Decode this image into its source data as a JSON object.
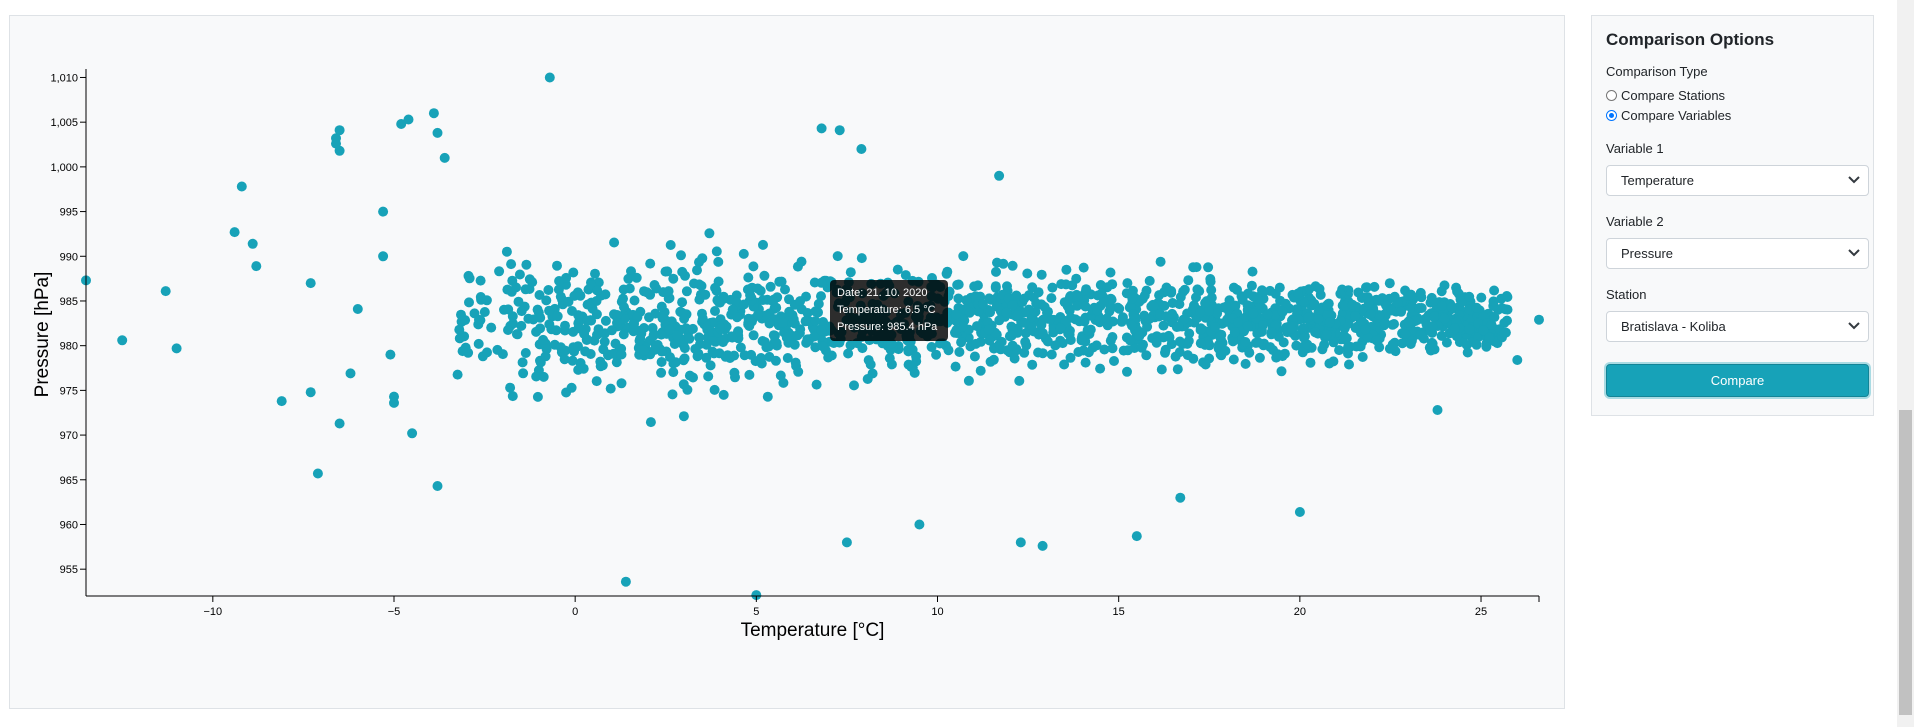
{
  "chart_data": {
    "type": "scatter",
    "xlabel": "Temperature [°C]",
    "ylabel": "Pressure [hPa]",
    "xlim": [
      -13.5,
      26.6
    ],
    "ylim": [
      952,
      1010.5
    ],
    "x_ticks": [
      -10,
      -5,
      0,
      5,
      10,
      15,
      20,
      25
    ],
    "x_tick_labels": [
      "−10",
      "−5",
      "0",
      "5",
      "10",
      "15",
      "20",
      "25"
    ],
    "y_ticks": [
      955,
      960,
      965,
      970,
      975,
      980,
      985,
      990,
      995,
      1000,
      1005,
      1010
    ],
    "y_tick_labels": [
      "955",
      "960",
      "965",
      "970",
      "975",
      "980",
      "985",
      "990",
      "995",
      "1,000",
      "1,005",
      "1,010"
    ],
    "grid": false,
    "point_color": "#17a2b8",
    "points": [
      [
        -13.5,
        987.3
      ],
      [
        -12.5,
        980.6
      ],
      [
        -11.3,
        986.1
      ],
      [
        -11.0,
        979.7
      ],
      [
        -9.4,
        992.7
      ],
      [
        -9.2,
        997.8
      ],
      [
        -8.9,
        991.4
      ],
      [
        -8.8,
        988.9
      ],
      [
        -8.1,
        973.8
      ],
      [
        -7.3,
        987.0
      ],
      [
        -7.3,
        974.8
      ],
      [
        -7.1,
        965.7
      ],
      [
        -6.6,
        1003.2
      ],
      [
        -6.6,
        1002.6
      ],
      [
        -6.5,
        1004.1
      ],
      [
        -6.5,
        1001.8
      ],
      [
        -6.5,
        971.3
      ],
      [
        -6.2,
        976.9
      ],
      [
        -6.0,
        984.1
      ],
      [
        -5.3,
        995.0
      ],
      [
        -5.3,
        990.0
      ],
      [
        -5.1,
        979.0
      ],
      [
        -5.0,
        974.3
      ],
      [
        -5.0,
        973.6
      ],
      [
        -4.8,
        1004.8
      ],
      [
        -4.6,
        1005.3
      ],
      [
        -4.5,
        970.2
      ],
      [
        -3.9,
        1006.0
      ],
      [
        -3.8,
        964.3
      ],
      [
        -3.8,
        1003.8
      ],
      [
        -3.6,
        1001.0
      ],
      [
        -0.7,
        1010.0
      ],
      [
        1.4,
        953.6
      ],
      [
        5.0,
        952.1
      ],
      [
        6.8,
        1004.3
      ],
      [
        7.3,
        1004.1
      ],
      [
        7.5,
        958.0
      ],
      [
        7.9,
        1002.0
      ],
      [
        9.5,
        960.0
      ],
      [
        11.7,
        999.0
      ],
      [
        12.3,
        958.0
      ],
      [
        12.9,
        957.6
      ],
      [
        15.5,
        958.7
      ],
      [
        16.7,
        963.0
      ],
      [
        20.0,
        961.4
      ],
      [
        23.8,
        972.8
      ],
      [
        26.0,
        978.4
      ],
      [
        26.6,
        982.9
      ]
    ],
    "tooltip": {
      "date": "Date: 21. 10. 2020",
      "temperature": "Temperature: 6.5 °C",
      "pressure": "Pressure: 985.4 hPa"
    }
  },
  "options": {
    "title": "Comparison Options",
    "comparison_type_label": "Comparison Type",
    "radio_compare_stations": "Compare Stations",
    "radio_compare_variables": "Compare Variables",
    "selected_type": "variables",
    "variable1_label": "Variable 1",
    "variable1_value": "Temperature",
    "variable2_label": "Variable 2",
    "variable2_value": "Pressure",
    "station_label": "Station",
    "station_value": "Bratislava - Koliba",
    "compare_button": "Compare"
  }
}
